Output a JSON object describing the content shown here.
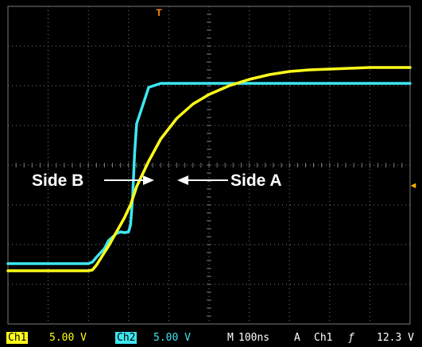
{
  "chart_data": {
    "type": "line",
    "title": "",
    "xlabel": "",
    "ylabel": "",
    "x_unit": "ns",
    "y_unit": "V",
    "time_per_div_ns": 100,
    "volts_per_div": 5.0,
    "grid": true,
    "divisions": {
      "x": 10,
      "y": 8
    },
    "x": [
      -500,
      -380,
      -300,
      -290,
      -280,
      -260,
      -250,
      -230,
      -220,
      -210,
      -200,
      -195,
      -190,
      -185,
      -180,
      -150,
      -120,
      -80,
      -40,
      0,
      50,
      100,
      150,
      200,
      250,
      300,
      350,
      400,
      450,
      500
    ],
    "series": [
      {
        "color": "#3ee6f0",
        "values": [
          -12.4,
          -12.4,
          -12.4,
          -12.2,
          -11.6,
          -10.5,
          -9.5,
          -8.6,
          -8.4,
          -8.5,
          -8.4,
          -7.5,
          -4.0,
          1.5,
          5.2,
          9.8,
          10.3,
          10.3,
          10.3,
          10.3,
          10.3,
          10.3,
          10.3,
          10.3,
          10.3,
          10.3,
          10.3,
          10.3,
          10.3,
          10.3
        ]
      },
      {
        "color": "#ffff1a",
        "values": [
          -13.3,
          -13.3,
          -13.3,
          -13.2,
          -12.6,
          -11.0,
          -10.2,
          -8.4,
          -7.5,
          -6.6,
          -5.5,
          -5.0,
          -4.2,
          -3.5,
          -2.7,
          0.5,
          3.3,
          5.9,
          7.7,
          8.9,
          10.0,
          10.8,
          11.4,
          11.8,
          12.0,
          12.1,
          12.2,
          12.3,
          12.3,
          12.3
        ]
      }
    ],
    "annotations": [
      {
        "text": "Side B",
        "arrow": "right"
      },
      {
        "text": "Side A",
        "arrow": "left"
      }
    ],
    "markers": {
      "trigger_position": "T",
      "trigger_level": "◄"
    }
  },
  "status_bar": {
    "ch1_label": "Ch1",
    "ch1_scale": "5.00 V",
    "ch2_label": "Ch2",
    "ch2_scale": "5.00 V",
    "timebase_label": "M",
    "timebase": "100ns",
    "trigger_mode": "A",
    "trigger_source": "Ch1",
    "trigger_slope": "ƒ",
    "trigger_level": "12.3 V"
  },
  "colors": {
    "screen_bg": "#000000",
    "grid": "#7a7a7a",
    "ch1": "#ffff1a",
    "ch2": "#3ee6f0",
    "trigger_marker": "#ff8c00"
  }
}
